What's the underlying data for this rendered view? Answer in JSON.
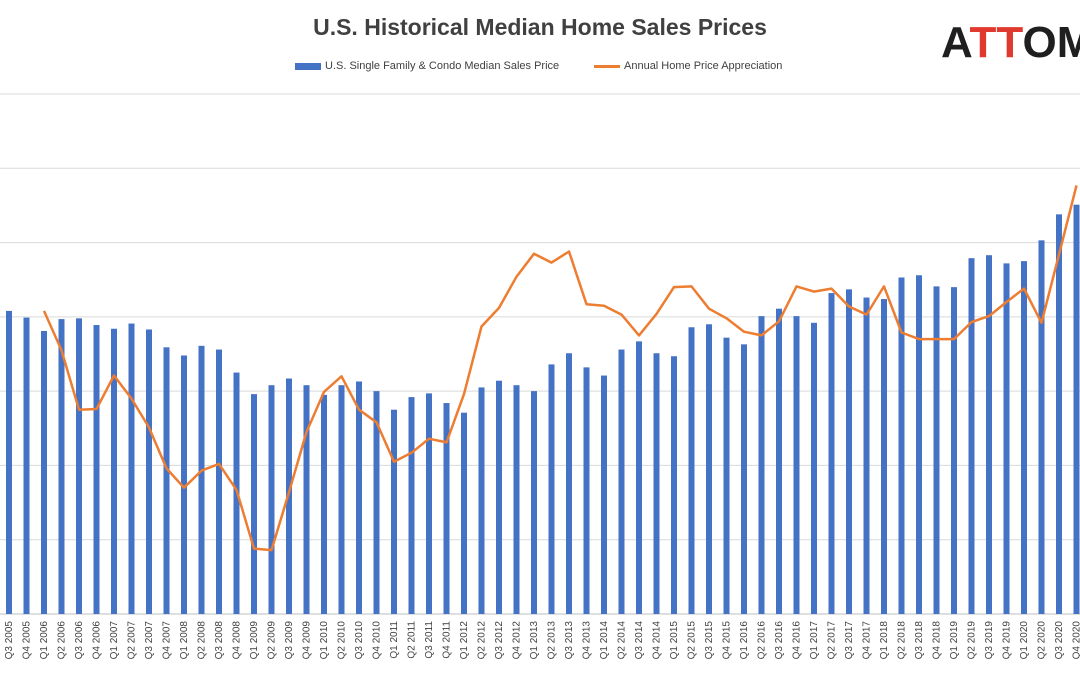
{
  "colors": {
    "bar": "#4472C4",
    "line": "#ED7D31",
    "grid": "#d9d9d9",
    "text": "#404040",
    "logo_accent": "#e03a2f"
  },
  "logo": {
    "text_first": "A",
    "text_accent": "TT",
    "text_rest": "OM",
    "icon": "attom-sphere-icon"
  },
  "chart_data": {
    "type": "bar",
    "title": "U.S. Historical Median Home Sales Prices",
    "legend_position": "top",
    "grid": true,
    "categories": [
      "Q3 2005",
      "Q4 2005",
      "Q1 2006",
      "Q2 2006",
      "Q3 2006",
      "Q4 2006",
      "Q1 2007",
      "Q2 2007",
      "Q3 2007",
      "Q4 2007",
      "Q1 2008",
      "Q2 2008",
      "Q3 2008",
      "Q4 2008",
      "Q1 2009",
      "Q2 2009",
      "Q3 2009",
      "Q4 2009",
      "Q1 2010",
      "Q2 2010",
      "Q3 2010",
      "Q4 2010",
      "Q1 2011",
      "Q2 2011",
      "Q3 2011",
      "Q4 2011",
      "Q1 2012",
      "Q2 2012",
      "Q3 2012",
      "Q4 2012",
      "Q1 2013",
      "Q2 2013",
      "Q3 2013",
      "Q4 2013",
      "Q1 2014",
      "Q2 2014",
      "Q3 2014",
      "Q4 2014",
      "Q1 2015",
      "Q2 2015",
      "Q3 2015",
      "Q4 2015",
      "Q1 2016",
      "Q2 2016",
      "Q3 2016",
      "Q4 2016",
      "Q1 2017",
      "Q2 2017",
      "Q3 2017",
      "Q4 2017",
      "Q1 2018",
      "Q2 2018",
      "Q3 2018",
      "Q4 2018",
      "Q1 2019",
      "Q2 2019",
      "Q3 2019",
      "Q4 2019",
      "Q1 2020",
      "Q2 2020",
      "Q3 2020",
      "Q4 2020"
    ],
    "series": [
      {
        "name": "U.S. Single Family & Condo Median Sales Price",
        "kind": "bar",
        "values": [
          4.08,
          3.99,
          3.81,
          3.97,
          3.98,
          3.89,
          3.84,
          3.91,
          3.83,
          3.59,
          3.48,
          3.61,
          3.56,
          3.25,
          2.96,
          3.08,
          3.17,
          3.08,
          2.95,
          3.08,
          3.13,
          3.0,
          2.75,
          2.92,
          2.97,
          2.84,
          2.71,
          3.05,
          3.14,
          3.08,
          3.0,
          3.36,
          3.51,
          3.32,
          3.21,
          3.56,
          3.67,
          3.51,
          3.47,
          3.86,
          3.9,
          3.72,
          3.63,
          4.01,
          4.11,
          4.01,
          3.92,
          4.32,
          4.37,
          4.26,
          4.24,
          4.53,
          4.56,
          4.41,
          4.4,
          4.79,
          4.83,
          4.72,
          4.75,
          5.03,
          5.38,
          5.51
        ]
      },
      {
        "name": "Annual Home Price Appreciation",
        "kind": "line",
        "values": [
          null,
          null,
          4.08,
          3.55,
          2.75,
          2.76,
          3.21,
          2.9,
          2.51,
          1.96,
          1.7,
          1.93,
          2.02,
          1.67,
          0.88,
          0.86,
          1.64,
          2.45,
          2.99,
          3.2,
          2.75,
          2.58,
          2.05,
          2.17,
          2.36,
          2.31,
          2.96,
          3.87,
          4.12,
          4.54,
          4.85,
          4.73,
          4.88,
          4.17,
          4.15,
          4.03,
          3.75,
          4.04,
          4.4,
          4.41,
          4.11,
          3.98,
          3.8,
          3.75,
          3.94,
          4.41,
          4.34,
          4.38,
          4.14,
          4.03,
          4.41,
          3.79,
          3.7,
          3.7,
          3.7,
          3.93,
          4.01,
          4.2,
          4.38,
          3.92,
          4.84,
          5.77
        ]
      }
    ],
    "ylim": [
      0,
      7
    ]
  }
}
